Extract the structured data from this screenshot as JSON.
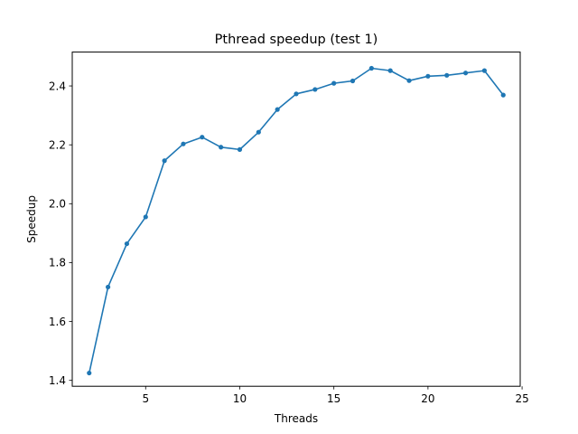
{
  "chart_data": {
    "type": "line",
    "title": "Pthread speedup (test 1)",
    "xlabel": "Threads",
    "ylabel": "Speedup",
    "xlim": [
      1.1,
      24.9
    ],
    "ylim": [
      1.38,
      2.515
    ],
    "xticks": [
      5,
      10,
      15,
      20,
      25
    ],
    "yticks": [
      1.4,
      1.6,
      1.8,
      2.0,
      2.2,
      2.4
    ],
    "xtick_labels": [
      "5",
      "10",
      "15",
      "20",
      "25"
    ],
    "ytick_labels": [
      "1.4",
      "1.6",
      "1.8",
      "2.0",
      "2.2",
      "2.4"
    ],
    "grid": false,
    "color": "#1f77b4",
    "series": [
      {
        "x": [
          2,
          3,
          4,
          5,
          6,
          7,
          8,
          9,
          10,
          11,
          12,
          13,
          14,
          15,
          16,
          17,
          18,
          19,
          20,
          21,
          22,
          23,
          24
        ],
        "values": [
          1.425,
          1.717,
          1.864,
          1.955,
          2.146,
          2.203,
          2.226,
          2.192,
          2.184,
          2.243,
          2.32,
          2.373,
          2.388,
          2.409,
          2.417,
          2.46,
          2.452,
          2.418,
          2.433,
          2.436,
          2.444,
          2.452,
          2.369
        ]
      }
    ]
  }
}
